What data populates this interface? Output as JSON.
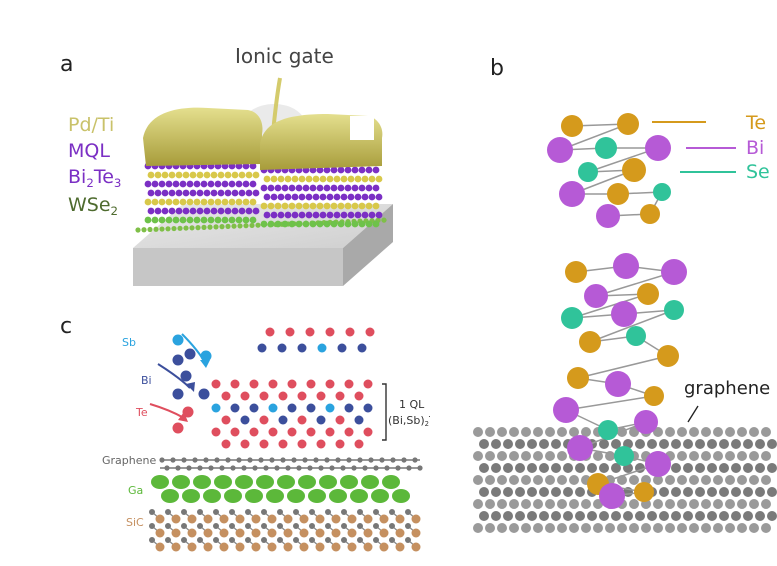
{
  "panel_a": {
    "letter": "a",
    "gate_label": "Ionic gate",
    "layers": [
      {
        "text": "Pd/Ti",
        "sub": "",
        "tail": "",
        "color": "#c9c26a"
      },
      {
        "text": "MQL",
        "sub": "",
        "tail": "",
        "color": "#7b2fc4"
      },
      {
        "text": "Bi",
        "sub": "2",
        "tail": "Te",
        "sub2": "3",
        "color": "#7b2fc4"
      },
      {
        "text": "WSe",
        "sub": "2",
        "tail": "",
        "color": "#4e6b2e"
      }
    ]
  },
  "panel_b": {
    "letter": "b",
    "legend": [
      {
        "label": "Te",
        "color": "#d59a1c"
      },
      {
        "label": "Bi",
        "color": "#b65ad6"
      },
      {
        "label": "Se",
        "color": "#30c39a"
      }
    ],
    "substrate_label": "graphene"
  },
  "panel_c": {
    "letter": "c",
    "species": [
      {
        "label": "Sb",
        "color": "#2aa3df"
      },
      {
        "label": "Bi",
        "color": "#3c4f9c"
      },
      {
        "label": "Te",
        "color": "#df4e5e"
      }
    ],
    "ql_label": "1 QL",
    "formula": {
      "a": "(Bi,Sb)",
      "b": "2",
      "c": "Te",
      "d": "3"
    },
    "stack_labels": [
      {
        "label": "Graphene",
        "color": "#666666"
      },
      {
        "label": "Ga",
        "color": "#5cb83a"
      },
      {
        "label": "SiC",
        "color": "#c59060"
      }
    ]
  }
}
